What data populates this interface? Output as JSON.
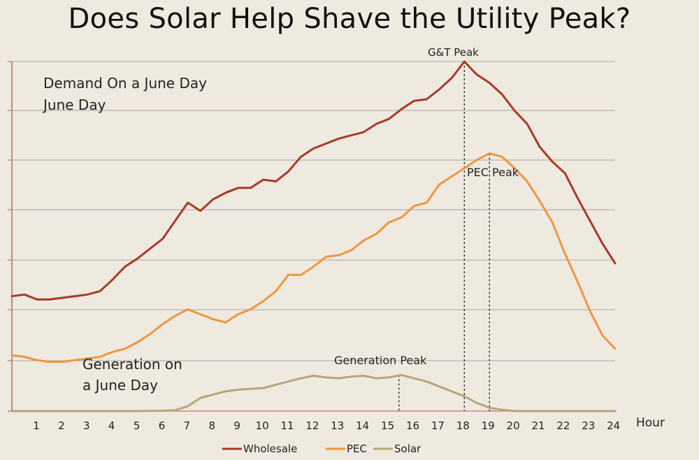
{
  "title": "Does Solar Help Shave the Utility Peak?",
  "chart_data": {
    "type": "line",
    "xlabel": "Hour",
    "ylabel": "",
    "x_ticks": [
      "1",
      "2",
      "3",
      "4",
      "5",
      "6",
      "7",
      "8",
      "9",
      "10",
      "11",
      "12",
      "13",
      "14",
      "15",
      "16",
      "17",
      "18",
      "19",
      "20",
      "21",
      "22",
      "23",
      "24"
    ],
    "x_range": [
      0,
      24
    ],
    "grid": true,
    "legend": "bottom",
    "annotations": {
      "demand": "Demand On a June Day",
      "generation": "Generation on a June Day",
      "gt_peak": "G&T Peak",
      "pec_peak": "PEC Peak",
      "gen_peak": "Generation Peak"
    },
    "series": [
      {
        "name": "Wholesale",
        "color": "#a93a26",
        "x": [
          0,
          0.5,
          1,
          1.5,
          2,
          2.5,
          3,
          3.5,
          4,
          4.5,
          5,
          5.5,
          6,
          6.5,
          7,
          7.5,
          8,
          8.5,
          9,
          9.5,
          10,
          10.5,
          11,
          11.5,
          12,
          12.5,
          13,
          13.5,
          14,
          14.5,
          15,
          15.5,
          16,
          16.5,
          17,
          17.5,
          18,
          18.5,
          19,
          19.5,
          20,
          20.5,
          21,
          21.5,
          22,
          22.5,
          23,
          23.5,
          24
        ],
        "values": [
          7.0,
          7.1,
          6.8,
          6.8,
          6.9,
          7.0,
          7.1,
          7.3,
          8.0,
          8.8,
          9.3,
          9.9,
          10.5,
          11.6,
          12.7,
          12.2,
          12.9,
          13.3,
          13.6,
          13.6,
          14.1,
          14.0,
          14.6,
          15.5,
          16.0,
          16.3,
          16.6,
          16.8,
          17.0,
          17.5,
          17.8,
          18.4,
          18.9,
          19.0,
          19.6,
          20.3,
          21.3,
          20.5,
          20.0,
          19.3,
          18.3,
          17.5,
          16.1,
          15.2,
          14.5,
          13.0,
          11.6,
          10.2,
          9.0
        ]
      },
      {
        "name": "PEC",
        "color": "#f0963f",
        "x": [
          0,
          0.5,
          1,
          1.5,
          2,
          2.5,
          3,
          3.5,
          4,
          4.5,
          5,
          5.5,
          6,
          6.5,
          7,
          7.5,
          8,
          8.5,
          9,
          9.5,
          10,
          10.5,
          11,
          11.5,
          12,
          12.5,
          13,
          13.5,
          14,
          14.5,
          15,
          15.5,
          16,
          16.5,
          17,
          17.5,
          18,
          18.5,
          19,
          19.5,
          20,
          20.5,
          21,
          21.5,
          22,
          22.5,
          23,
          23.5,
          24
        ],
        "values": [
          3.4,
          3.3,
          3.1,
          3.0,
          3.0,
          3.1,
          3.2,
          3.3,
          3.6,
          3.8,
          4.2,
          4.7,
          5.3,
          5.8,
          6.2,
          5.9,
          5.6,
          5.4,
          5.9,
          6.2,
          6.7,
          7.3,
          8.3,
          8.3,
          8.8,
          9.4,
          9.5,
          9.8,
          10.4,
          10.8,
          11.5,
          11.8,
          12.5,
          12.7,
          13.8,
          14.3,
          14.8,
          15.3,
          15.7,
          15.5,
          14.8,
          14.0,
          12.8,
          11.5,
          9.6,
          7.9,
          6.1,
          4.6,
          3.8
        ]
      },
      {
        "name": "Solar",
        "color": "#b8a47a",
        "x": [
          0,
          1,
          2,
          3,
          4,
          5,
          6,
          6.5,
          7,
          7.5,
          8,
          8.5,
          9,
          9.5,
          10,
          10.5,
          11,
          11.5,
          12,
          12.5,
          13,
          13.5,
          14,
          14.5,
          15,
          15.5,
          16,
          16.5,
          17,
          17.5,
          18,
          18.5,
          19,
          19.5,
          20,
          21,
          22,
          23,
          24
        ],
        "values": [
          0,
          0,
          0,
          0,
          0,
          0,
          0.02,
          0.05,
          0.3,
          0.8,
          1.0,
          1.2,
          1.3,
          1.35,
          1.4,
          1.6,
          1.8,
          2.0,
          2.15,
          2.05,
          2.0,
          2.1,
          2.15,
          2.0,
          2.05,
          2.2,
          2.0,
          1.8,
          1.5,
          1.2,
          0.9,
          0.5,
          0.2,
          0.08,
          0,
          0,
          0,
          0,
          0
        ]
      }
    ],
    "peak_markers": [
      {
        "name": "gt",
        "x": 18,
        "y": 21.3
      },
      {
        "name": "pec",
        "x": 19,
        "y": 15.7
      },
      {
        "name": "gen",
        "x": 15.4,
        "y": 2.2
      }
    ],
    "ylim": [
      0,
      21.3
    ]
  }
}
